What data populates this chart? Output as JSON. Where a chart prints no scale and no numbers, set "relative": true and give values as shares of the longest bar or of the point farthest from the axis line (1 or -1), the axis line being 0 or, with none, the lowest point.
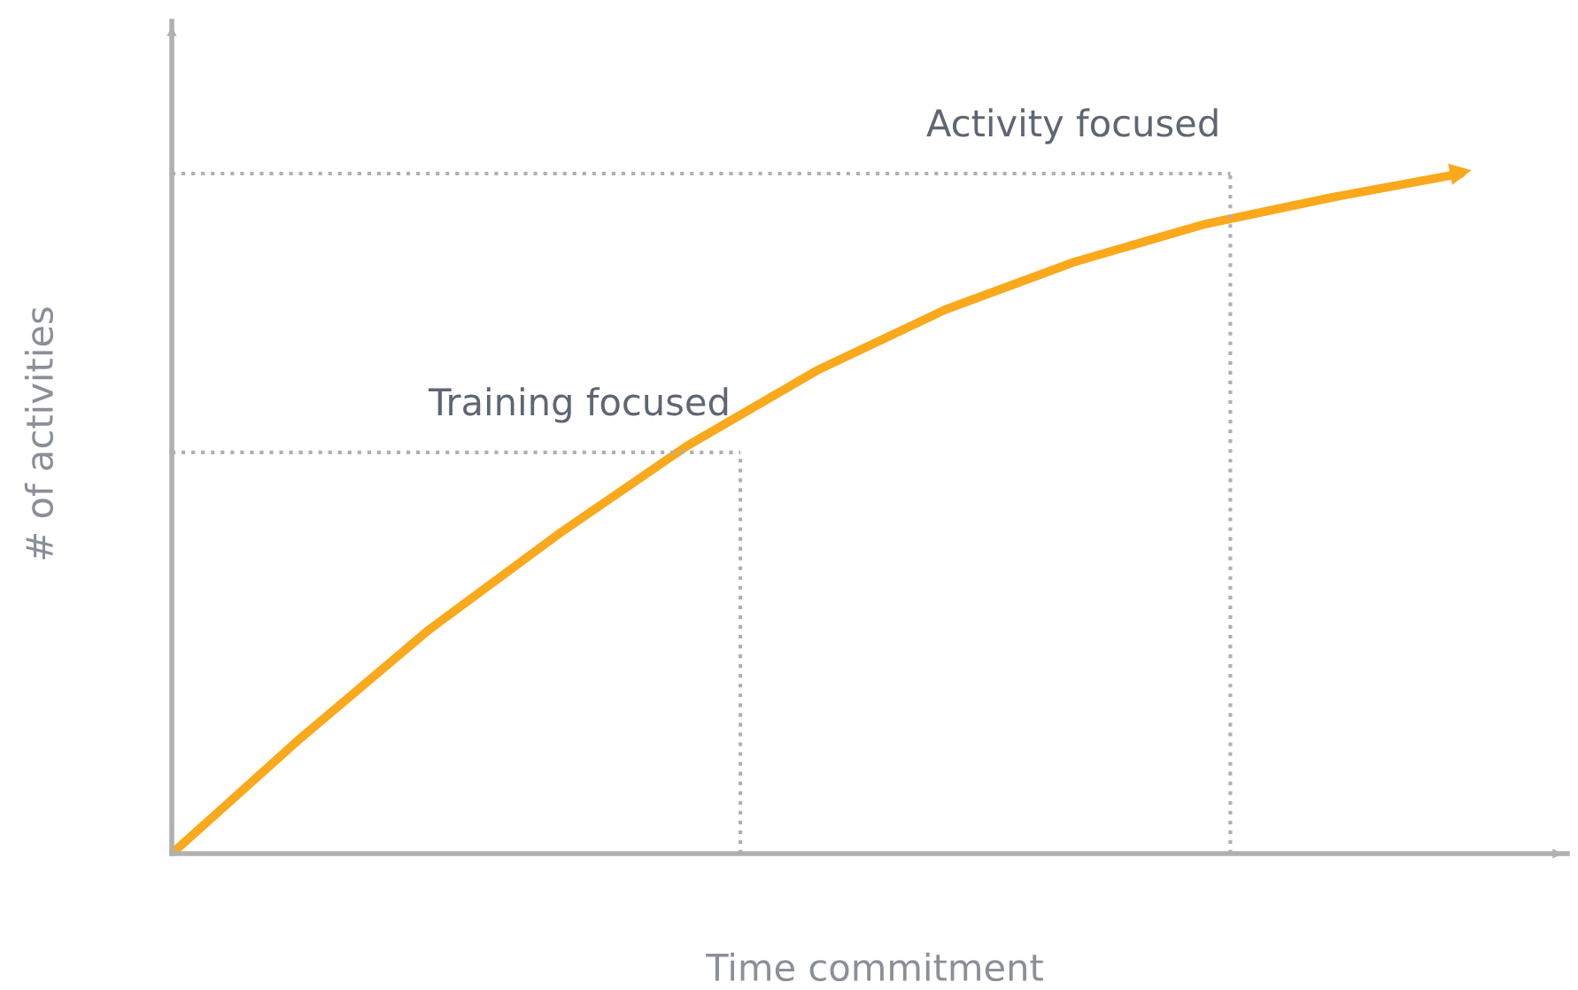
{
  "chart_data": {
    "type": "line",
    "relative": true,
    "xlabel": "Time commitment",
    "ylabel": "# of activities",
    "categories": [
      null,
      null,
      null,
      null,
      null,
      null,
      null,
      null,
      null,
      null,
      null
    ],
    "series": [
      {
        "color": "#f9a91b",
        "values": [
          0,
          0.17,
          0.33,
          0.47,
          0.6,
          0.71,
          0.8,
          0.87,
          0.925,
          0.965,
          1.0
        ]
      }
    ],
    "ref_lines": [
      {
        "axis": "y",
        "value": 0.59,
        "color": "#b0b0b0",
        "line_style": "dotted"
      },
      {
        "axis": "y",
        "value": 1.0,
        "color": "#b0b0b0",
        "line_style": "dotted"
      }
    ],
    "annotations": [
      "Training focused",
      "Activity focused"
    ],
    "legend": false,
    "marker": "none",
    "line_style": "solid"
  }
}
